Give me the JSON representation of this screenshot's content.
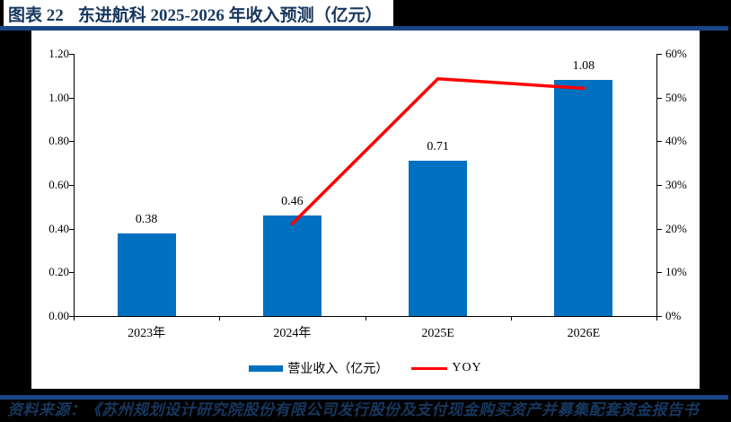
{
  "header": {
    "figure_label": "图表 22",
    "title": "东进航科 2025-2026 年收入预测（亿元）"
  },
  "footer": {
    "source": "资料来源：《苏州规划设计研究院股份有限公司发行股份及支付现金购买资产并募集配套资金报告书"
  },
  "colors": {
    "page_bg": "#000000",
    "panel_bg": "#FFFFFF",
    "navy_text": "#17375E",
    "rule": "#1B4586",
    "bar": "#0070C0",
    "line": "#FF0000",
    "axis": "#000000"
  },
  "chart_data": {
    "type": "bar",
    "subtype": "bar+line combo",
    "categories": [
      "2023年",
      "2024年",
      "2025E",
      "2026E"
    ],
    "series": [
      {
        "name": "营业收入（亿元）",
        "type": "bar",
        "axis": "left",
        "color": "#0070C0",
        "values": [
          0.38,
          0.46,
          0.71,
          1.08
        ],
        "data_labels": [
          "0.38",
          "0.46",
          "0.71",
          "1.08"
        ]
      },
      {
        "name": "YOY",
        "type": "line",
        "axis": "right",
        "color": "#FF0000",
        "values": [
          null,
          21.1,
          54.3,
          52.1
        ]
      }
    ],
    "left_axis": {
      "min": 0,
      "max": 1.2,
      "step": 0.2,
      "tick_labels": [
        "0.00",
        "0.20",
        "0.40",
        "0.60",
        "0.80",
        "1.00",
        "1.20"
      ]
    },
    "right_axis": {
      "min": 0,
      "max": 60,
      "step": 10,
      "unit": "%",
      "tick_labels": [
        "0%",
        "10%",
        "20%",
        "30%",
        "40%",
        "50%",
        "60%"
      ]
    },
    "grid": false,
    "legend_position": "bottom"
  }
}
